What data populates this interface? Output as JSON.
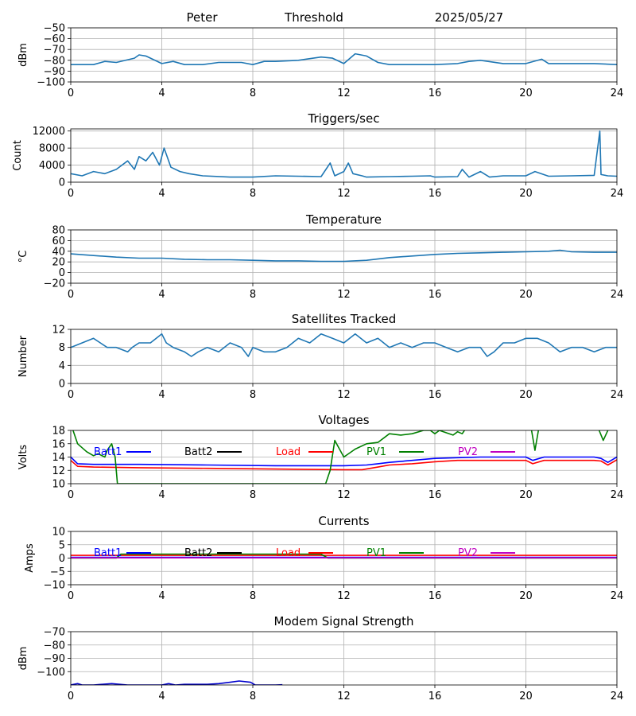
{
  "header": {
    "name": "Peter",
    "mode": "Threshold",
    "date": "2025/05/27"
  },
  "chart_data": [
    {
      "type": "line",
      "title": "",
      "ylabel": "dBm",
      "xlim": [
        0,
        24
      ],
      "xticks": [
        0,
        4,
        8,
        12,
        16,
        20,
        24
      ],
      "ylim": [
        -100,
        -50
      ],
      "yticks": [
        -100,
        -90,
        -80,
        -70,
        -60,
        -50
      ],
      "grid": true,
      "color": "#1f77b4",
      "series": [
        {
          "name": "",
          "color": "#1f77b4",
          "x": [
            0,
            1,
            1.5,
            2,
            2.8,
            3,
            3.3,
            4,
            4.5,
            5,
            5.8,
            6.5,
            7.5,
            8,
            8.5,
            9,
            10,
            11,
            11.5,
            12,
            12.5,
            13,
            13.5,
            14,
            15,
            16,
            17,
            17.5,
            18,
            19,
            20,
            20.7,
            21,
            22,
            23,
            24
          ],
          "values": [
            -84,
            -84,
            -81,
            -82,
            -78,
            -75,
            -76,
            -83,
            -81,
            -84,
            -84,
            -82,
            -82,
            -84,
            -81,
            -81,
            -80,
            -77,
            -78,
            -83,
            -74,
            -76,
            -82,
            -84,
            -84,
            -84,
            -83,
            -81,
            -80,
            -83,
            -83,
            -79,
            -83,
            -83,
            -83,
            -84
          ]
        }
      ]
    },
    {
      "type": "line",
      "title": "Triggers/sec",
      "ylabel": "Count",
      "xlim": [
        0,
        24
      ],
      "xticks": [
        0,
        4,
        8,
        12,
        16,
        20,
        24
      ],
      "ylim": [
        0,
        12500
      ],
      "yticks": [
        0,
        4000,
        8000,
        12000
      ],
      "grid": true,
      "color": "#1f77b4",
      "series": [
        {
          "name": "",
          "color": "#1f77b4",
          "x": [
            0,
            0.5,
            1,
            1.5,
            2,
            2.5,
            2.8,
            3,
            3.3,
            3.6,
            3.9,
            4.1,
            4.4,
            4.8,
            5.2,
            5.8,
            7,
            8,
            9,
            10,
            11,
            11.4,
            11.6,
            12,
            12.2,
            12.4,
            12.8,
            13,
            14,
            15,
            15.8,
            16,
            17,
            17.2,
            17.5,
            18,
            18.4,
            19,
            20,
            20.4,
            21,
            22,
            23,
            23.25,
            23.3,
            23.6,
            24
          ],
          "values": [
            2000,
            1500,
            2500,
            2000,
            3000,
            5000,
            3000,
            6000,
            5000,
            7000,
            4000,
            8000,
            3500,
            2500,
            2000,
            1500,
            1200,
            1200,
            1500,
            1400,
            1300,
            4500,
            1500,
            2500,
            4500,
            2000,
            1500,
            1200,
            1300,
            1400,
            1500,
            1200,
            1300,
            3000,
            1200,
            2500,
            1200,
            1500,
            1500,
            2500,
            1400,
            1500,
            1600,
            12000,
            1800,
            1500,
            1400
          ]
        }
      ]
    },
    {
      "type": "line",
      "title": "Temperature",
      "ylabel": "°C",
      "xlim": [
        0,
        24
      ],
      "xticks": [
        0,
        4,
        8,
        12,
        16,
        20,
        24
      ],
      "ylim": [
        -20,
        80
      ],
      "yticks": [
        -20,
        0,
        20,
        40,
        60,
        80
      ],
      "grid": true,
      "color": "#1f77b4",
      "series": [
        {
          "name": "",
          "color": "#1f77b4",
          "x": [
            0,
            1,
            2,
            3,
            4,
            5,
            6,
            7,
            8,
            9,
            10,
            11,
            12,
            13,
            14,
            15,
            16,
            17,
            18,
            19,
            20,
            21,
            21.5,
            22,
            23,
            24
          ],
          "values": [
            35,
            32,
            29,
            27,
            27,
            25,
            24,
            24,
            23,
            22,
            22,
            21,
            21,
            23,
            28,
            31,
            34,
            36,
            37,
            38,
            39,
            40,
            42,
            39,
            38,
            38
          ]
        }
      ]
    },
    {
      "type": "line",
      "title": "Satellites Tracked",
      "ylabel": "Number",
      "xlim": [
        0,
        24
      ],
      "xticks": [
        0,
        4,
        8,
        12,
        16,
        20,
        24
      ],
      "ylim": [
        0,
        12
      ],
      "yticks": [
        0,
        4,
        8,
        12
      ],
      "grid": true,
      "color": "#1f77b4",
      "series": [
        {
          "name": "",
          "color": "#1f77b4",
          "x": [
            0,
            0.5,
            1,
            1.3,
            1.6,
            2,
            2.5,
            2.7,
            3,
            3.5,
            4,
            4.2,
            4.5,
            5,
            5.3,
            5.6,
            6,
            6.5,
            7,
            7.5,
            7.8,
            8,
            8.5,
            9,
            9.5,
            10,
            10.5,
            11,
            11.5,
            12,
            12.5,
            13,
            13.5,
            14,
            14.5,
            15,
            15.5,
            16,
            16.5,
            17,
            17.5,
            18,
            18.3,
            18.6,
            19,
            19.5,
            20,
            20.5,
            21,
            21.5,
            22,
            22.5,
            23,
            23.5,
            24
          ],
          "values": [
            8,
            9,
            10,
            9,
            8,
            8,
            7,
            8,
            9,
            9,
            11,
            9,
            8,
            7,
            6,
            7,
            8,
            7,
            9,
            8,
            6,
            8,
            7,
            7,
            8,
            10,
            9,
            11,
            10,
            9,
            11,
            9,
            10,
            8,
            9,
            8,
            9,
            9,
            8,
            7,
            8,
            8,
            6,
            7,
            9,
            9,
            10,
            10,
            9,
            7,
            8,
            8,
            7,
            8,
            8
          ]
        }
      ]
    },
    {
      "type": "line",
      "title": "Voltages",
      "ylabel": "Volts",
      "xlim": [
        0,
        24
      ],
      "xticks": [
        0,
        4,
        8,
        12,
        16,
        20,
        24
      ],
      "ylim": [
        10,
        18
      ],
      "yticks": [
        10,
        12,
        14,
        16,
        18
      ],
      "grid": true,
      "legend": "inside-top",
      "series": [
        {
          "name": "Batt1",
          "color": "#0000ff",
          "x": [
            0,
            0.3,
            1,
            3,
            6,
            9,
            12,
            13,
            13.5,
            14,
            15,
            16,
            17,
            18,
            20,
            20.3,
            20.8,
            21,
            23,
            23.3,
            23.6,
            24
          ],
          "values": [
            14,
            13,
            12.9,
            12.9,
            12.8,
            12.7,
            12.7,
            12.8,
            13,
            13.2,
            13.5,
            13.8,
            13.9,
            14,
            14,
            13.5,
            14,
            14,
            14,
            13.8,
            13.2,
            14
          ]
        },
        {
          "name": "Batt2",
          "color": "#000000",
          "x": [],
          "values": []
        },
        {
          "name": "Load",
          "color": "#ff0000",
          "x": [
            0,
            0.3,
            1,
            3,
            6,
            9,
            12,
            12.8,
            13.5,
            14,
            15,
            16,
            17,
            18,
            20,
            20.3,
            20.8,
            21,
            23,
            23.3,
            23.6,
            24
          ],
          "values": [
            13.5,
            12.6,
            12.5,
            12.4,
            12.3,
            12.2,
            12.1,
            12.1,
            12.5,
            12.8,
            13,
            13.3,
            13.5,
            13.5,
            13.5,
            13,
            13.5,
            13.5,
            13.5,
            13.4,
            12.8,
            13.6
          ]
        },
        {
          "name": "PV1",
          "color": "#008000",
          "x": [
            0,
            0.3,
            0.7,
            1,
            1.2,
            1.5,
            1.6,
            1.8,
            1.95,
            2.05,
            11.2,
            11.4,
            11.6,
            12,
            12.5,
            13,
            13.5,
            14,
            14.5,
            15,
            15.5,
            15.8,
            16,
            16.2,
            16.8,
            17,
            17.2,
            17.5,
            20.2,
            20.4,
            20.6,
            23.1,
            23.4,
            23.6,
            23.8
          ],
          "values": [
            19,
            16,
            14.8,
            14.2,
            14.5,
            14,
            15,
            16,
            14,
            10,
            10,
            12,
            16.5,
            14,
            15.2,
            16,
            16.2,
            17.5,
            17.3,
            17.5,
            18,
            18,
            17.5,
            18,
            17.3,
            17.8,
            17.5,
            19,
            19,
            15,
            19,
            19,
            16.5,
            18,
            19
          ]
        },
        {
          "name": "PV2",
          "color": "#bf00bf",
          "x": [],
          "values": []
        }
      ]
    },
    {
      "type": "line",
      "title": "Currents",
      "ylabel": "Amps",
      "xlim": [
        0,
        24
      ],
      "xticks": [
        0,
        4,
        8,
        12,
        16,
        20,
        24
      ],
      "ylim": [
        -10,
        10
      ],
      "yticks": [
        -10,
        -5,
        0,
        5,
        10
      ],
      "grid": true,
      "legend": "inside-top",
      "series": [
        {
          "name": "Batt1",
          "color": "#0000ff",
          "x": [
            0,
            24
          ],
          "values": [
            0.3,
            0.3
          ]
        },
        {
          "name": "Batt2",
          "color": "#000000",
          "x": [],
          "values": []
        },
        {
          "name": "Load",
          "color": "#ff0000",
          "x": [
            0,
            24
          ],
          "values": [
            1.0,
            1.0
          ]
        },
        {
          "name": "PV1",
          "color": "#008000",
          "x": [
            0,
            2,
            2.2,
            11,
            11.3,
            24
          ],
          "values": [
            0,
            0,
            1.5,
            1.5,
            0,
            0
          ]
        },
        {
          "name": "PV2",
          "color": "#bf00bf",
          "x": [
            0,
            24
          ],
          "values": [
            0.1,
            0.1
          ]
        }
      ]
    },
    {
      "type": "line",
      "title": "Modem Signal Strength",
      "ylabel": "dBm",
      "xlim": [
        0,
        24
      ],
      "xticks": [
        0,
        4,
        8,
        12,
        16,
        20,
        24
      ],
      "ylim": [
        -110,
        -70
      ],
      "yticks": [
        -100,
        -90,
        -80,
        -70
      ],
      "grid": true,
      "color": "#0000cc",
      "series": [
        {
          "name": "",
          "color": "#0000cc",
          "x": [
            0,
            0.3,
            0.5,
            1,
            1.8,
            2.5,
            3,
            4,
            4.3,
            4.6,
            5,
            6,
            6.5,
            7,
            7.4,
            7.9,
            8.1,
            9,
            9.3
          ],
          "values": [
            -110,
            -109,
            -110,
            -110,
            -109,
            -110,
            -110,
            -110,
            -109,
            -110,
            -109.5,
            -109.5,
            -109,
            -108,
            -107,
            -108,
            -110,
            -110,
            -109.8
          ]
        }
      ]
    }
  ]
}
